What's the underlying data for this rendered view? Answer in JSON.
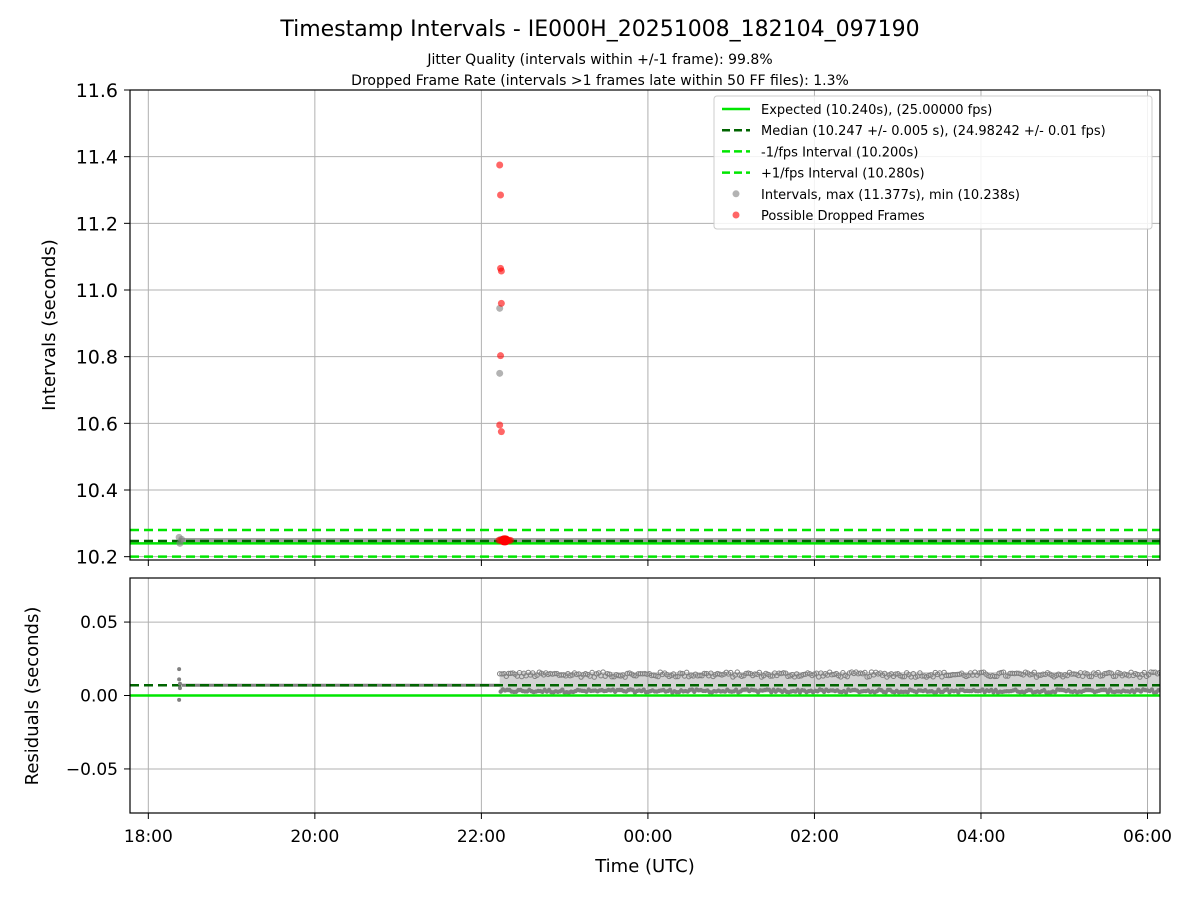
{
  "title": "Timestamp Intervals - IE000H_20251008_182104_097190",
  "subtitle_1": "Jitter Quality (intervals within +/-1 frame): 99.8%",
  "subtitle_2": "Dropped Frame Rate (intervals >1 frames late within 50 FF files): 1.3%",
  "chart_data": [
    {
      "type": "scatter",
      "panel": "intervals",
      "ylabel": "Intervals (seconds)",
      "ylim": [
        10.19,
        11.6
      ],
      "yticks": [
        10.2,
        10.4,
        10.6,
        10.8,
        11.0,
        11.2,
        11.4,
        11.6
      ],
      "ytick_labels": [
        "10.2",
        "10.4",
        "10.6",
        "10.8",
        "11.0",
        "11.2",
        "11.4",
        "11.6"
      ],
      "grid": true,
      "x_unit": "hours since 18:00 UTC",
      "xlim": [
        -0.22,
        12.15
      ],
      "legend_position": "top-right",
      "lines": [
        {
          "name": "Expected (10.240s), (25.00000 fps)",
          "y": 10.24,
          "color": "#00e600",
          "style": "solid"
        },
        {
          "name": "Median (10.247 +/- 0.005 s), (24.98242 +/- 0.01 fps)",
          "y": 10.247,
          "color": "#006400",
          "style": "dashed"
        },
        {
          "name": "-1/fps Interval (10.200s)",
          "y": 10.2,
          "color": "#00e600",
          "style": "dashed"
        },
        {
          "name": "+1/fps Interval (10.280s)",
          "y": 10.28,
          "color": "#00e600",
          "style": "dashed"
        }
      ],
      "intervals_series": {
        "name": "Intervals, max (11.377s), min (10.238s)",
        "color": "#808080",
        "band": {
          "x_start": 0.37,
          "x_end": 12.15,
          "y_low": 10.243,
          "y_high": 10.256
        },
        "points": [
          {
            "x": 0.37,
            "y": 10.258
          },
          {
            "x": 0.38,
            "y": 10.24
          },
          {
            "x": 0.4,
            "y": 10.252
          },
          {
            "x": 4.22,
            "y": 10.945
          },
          {
            "x": 4.22,
            "y": 10.75
          },
          {
            "x": 4.23,
            "y": 10.252
          }
        ]
      },
      "dropped_series": {
        "name": "Possible Dropped Frames",
        "color": "#ff0000",
        "points": [
          {
            "x": 4.22,
            "y": 11.375
          },
          {
            "x": 4.23,
            "y": 11.285
          },
          {
            "x": 4.23,
            "y": 11.065
          },
          {
            "x": 4.24,
            "y": 11.057
          },
          {
            "x": 4.24,
            "y": 10.96
          },
          {
            "x": 4.23,
            "y": 10.803
          },
          {
            "x": 4.22,
            "y": 10.595
          },
          {
            "x": 4.24,
            "y": 10.575
          },
          {
            "x": 4.21,
            "y": 10.249
          },
          {
            "x": 4.23,
            "y": 10.249
          },
          {
            "x": 4.25,
            "y": 10.249
          },
          {
            "x": 4.27,
            "y": 10.249
          },
          {
            "x": 4.29,
            "y": 10.249
          },
          {
            "x": 4.31,
            "y": 10.249
          },
          {
            "x": 4.33,
            "y": 10.249
          },
          {
            "x": 4.35,
            "y": 10.249
          }
        ]
      }
    },
    {
      "type": "scatter",
      "panel": "residuals",
      "ylabel": "Residuals (seconds)",
      "xlabel": "Time (UTC)",
      "ylim": [
        -0.08,
        0.08
      ],
      "yticks": [
        -0.05,
        0.0,
        0.05
      ],
      "ytick_labels": [
        "−0.05",
        "0.00",
        "0.05"
      ],
      "x_unit": "hours since 18:00 UTC",
      "xlim": [
        -0.22,
        12.15
      ],
      "xticks": [
        0,
        2,
        4,
        6,
        8,
        10,
        12
      ],
      "xtick_labels": [
        "18:00",
        "20:00",
        "22:00",
        "00:00",
        "02:00",
        "04:00",
        "06:00"
      ],
      "grid": true,
      "expected_line": {
        "y": 0.0,
        "color": "#00e600",
        "style": "solid"
      },
      "median_line": {
        "y": 0.007,
        "color": "#006400",
        "style": "dashed"
      },
      "residual_points": [
        {
          "x": 0.37,
          "y": 0.018
        },
        {
          "x": 0.37,
          "y": 0.011
        },
        {
          "x": 0.38,
          "y": 0.008
        },
        {
          "x": 0.38,
          "y": 0.005
        },
        {
          "x": 0.37,
          "y": -0.003
        }
      ],
      "residual_band": {
        "x_start": 4.22,
        "x_end": 12.15,
        "y_low": 0.002,
        "y_high": 0.016,
        "color": "#808080"
      },
      "residual_flat": {
        "x_start": 0.4,
        "x_end": 4.22,
        "y": 0.007
      }
    }
  ]
}
